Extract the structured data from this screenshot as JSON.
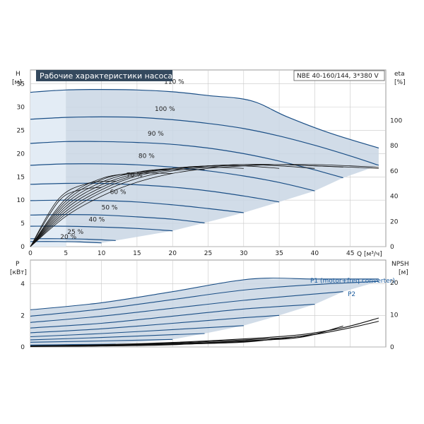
{
  "chart_data": [
    {
      "type": "line",
      "title": "Рабочие характеристики насоса",
      "model": "NBE 40-160/144, 3*380 V",
      "ylabel_left": [
        "H",
        "[м]"
      ],
      "ylabel_right": [
        "eta",
        "[%]"
      ],
      "xlabel": "Q [м³/ч]",
      "xlim": [
        0,
        50
      ],
      "ylim_left": [
        0,
        38
      ],
      "ylim_right": [
        0,
        140
      ],
      "x_ticks": [
        0,
        5,
        10,
        15,
        20,
        25,
        30,
        35,
        40,
        45
      ],
      "y_ticks_left": [
        0,
        5,
        10,
        15,
        20,
        25,
        30,
        35
      ],
      "y_ticks_right": [
        0,
        20,
        40,
        60,
        80,
        100
      ],
      "grid": true,
      "speed_curves": [
        {
          "label": "110 %",
          "points": [
            [
              0,
              33.2
            ],
            [
              5,
              33.7
            ],
            [
              10,
              33.8
            ],
            [
              15,
              33.7
            ],
            [
              20,
              33.3
            ],
            [
              25,
              32.5
            ],
            [
              31,
              31.4
            ],
            [
              36,
              28.0
            ],
            [
              42,
              24.5
            ],
            [
              49,
              21.2
            ]
          ]
        },
        {
          "label": "100 %",
          "points": [
            [
              0,
              27.4
            ],
            [
              5,
              27.8
            ],
            [
              10,
              27.9
            ],
            [
              15,
              27.8
            ],
            [
              20,
              27.3
            ],
            [
              25,
              26.5
            ],
            [
              30,
              25.4
            ],
            [
              35,
              23.8
            ],
            [
              40,
              21.8
            ],
            [
              45,
              19.5
            ],
            [
              49,
              17.5
            ]
          ]
        },
        {
          "label": "90 %",
          "points": [
            [
              0,
              22.2
            ],
            [
              5,
              22.6
            ],
            [
              10,
              22.6
            ],
            [
              15,
              22.4
            ],
            [
              20,
              22.0
            ],
            [
              25,
              21.2
            ],
            [
              30,
              20.0
            ],
            [
              35,
              18.4
            ],
            [
              40,
              16.5
            ],
            [
              44,
              14.8
            ]
          ]
        },
        {
          "label": "80 %",
          "points": [
            [
              0,
              17.5
            ],
            [
              5,
              17.8
            ],
            [
              10,
              17.8
            ],
            [
              15,
              17.6
            ],
            [
              20,
              17.1
            ],
            [
              25,
              16.3
            ],
            [
              30,
              15.2
            ],
            [
              35,
              13.8
            ],
            [
              40,
              12.0
            ]
          ]
        },
        {
          "label": "70 %",
          "points": [
            [
              0,
              13.4
            ],
            [
              5,
              13.6
            ],
            [
              10,
              13.6
            ],
            [
              15,
              13.3
            ],
            [
              20,
              12.8
            ],
            [
              25,
              12.0
            ],
            [
              30,
              10.9
            ],
            [
              35,
              9.6
            ]
          ]
        },
        {
          "label": "60 %",
          "points": [
            [
              0,
              9.9
            ],
            [
              5,
              10.0
            ],
            [
              10,
              9.9
            ],
            [
              15,
              9.6
            ],
            [
              20,
              9.0
            ],
            [
              25,
              8.2
            ],
            [
              30,
              7.3
            ]
          ]
        },
        {
          "label": "50 %",
          "points": [
            [
              0,
              6.8
            ],
            [
              5,
              6.9
            ],
            [
              10,
              6.8
            ],
            [
              15,
              6.4
            ],
            [
              20,
              5.9
            ],
            [
              24.5,
              5.1
            ]
          ]
        },
        {
          "label": "40 %",
          "points": [
            [
              0,
              4.4
            ],
            [
              5,
              4.4
            ],
            [
              10,
              4.2
            ],
            [
              15,
              3.9
            ],
            [
              20,
              3.4
            ]
          ]
        },
        {
          "label": "25 %",
          "points": [
            [
              0,
              1.7
            ],
            [
              4,
              1.7
            ],
            [
              8,
              1.6
            ],
            [
              12,
              1.3
            ]
          ]
        },
        {
          "label": "20 %",
          "points": [
            [
              0,
              1.1
            ],
            [
              4,
              1.1
            ],
            [
              7,
              1.0
            ],
            [
              10,
              0.8
            ]
          ]
        }
      ],
      "efficiency_curves": [
        {
          "label": "110 %",
          "points": [
            [
              0,
              0
            ],
            [
              5,
              24
            ],
            [
              10,
              40
            ],
            [
              15,
              51
            ],
            [
              20,
              58
            ],
            [
              25,
              62
            ],
            [
              30,
              64
            ],
            [
              35,
              65
            ],
            [
              40,
              64
            ],
            [
              45,
              63
            ],
            [
              49,
              62
            ]
          ]
        },
        {
          "label": "100 %",
          "points": [
            [
              0,
              0
            ],
            [
              5,
              26
            ],
            [
              10,
              43
            ],
            [
              15,
              54
            ],
            [
              20,
              60
            ],
            [
              25,
              63
            ],
            [
              30,
              65
            ],
            [
              35,
              65
            ],
            [
              40,
              65
            ],
            [
              45,
              64
            ],
            [
              49,
              63
            ]
          ]
        },
        {
          "label": "90 %",
          "points": [
            [
              0,
              0
            ],
            [
              5,
              28
            ],
            [
              10,
              45
            ],
            [
              15,
              56
            ],
            [
              20,
              61
            ],
            [
              25,
              64
            ],
            [
              30,
              65
            ],
            [
              35,
              65
            ],
            [
              40,
              64
            ],
            [
              44,
              63
            ]
          ]
        },
        {
          "label": "80 %",
          "points": [
            [
              0,
              0
            ],
            [
              5,
              30
            ],
            [
              10,
              47
            ],
            [
              15,
              57
            ],
            [
              20,
              62
            ],
            [
              25,
              64
            ],
            [
              30,
              65
            ],
            [
              35,
              64
            ],
            [
              40,
              62
            ]
          ]
        },
        {
          "label": "70 %",
          "points": [
            [
              0,
              0
            ],
            [
              5,
              32
            ],
            [
              10,
              49
            ],
            [
              15,
              58
            ],
            [
              20,
              62
            ],
            [
              25,
              64
            ],
            [
              30,
              64
            ],
            [
              35,
              62
            ]
          ]
        },
        {
          "label": "60 %",
          "points": [
            [
              0,
              0
            ],
            [
              5,
              34
            ],
            [
              10,
              51
            ],
            [
              15,
              59
            ],
            [
              20,
              62
            ],
            [
              25,
              63
            ],
            [
              30,
              62
            ]
          ]
        },
        {
          "label": "50 %",
          "points": [
            [
              0,
              0
            ],
            [
              5,
              36
            ],
            [
              10,
              53
            ],
            [
              15,
              59
            ],
            [
              20,
              61
            ],
            [
              24.5,
              61
            ]
          ]
        },
        {
          "label": "40 %",
          "points": [
            [
              0,
              0
            ],
            [
              5,
              38
            ],
            [
              10,
              54
            ],
            [
              15,
              58
            ],
            [
              20,
              58
            ]
          ]
        },
        {
          "label": "25 %",
          "points": [
            [
              0,
              0
            ],
            [
              4,
              38
            ],
            [
              8,
              50
            ],
            [
              12,
              52
            ]
          ]
        },
        {
          "label": "20 %",
          "points": [
            [
              0,
              0
            ],
            [
              4,
              36
            ],
            [
              7,
              45
            ],
            [
              10,
              47
            ]
          ]
        }
      ]
    },
    {
      "type": "line",
      "ylabel_left": [
        "P",
        "[кВт]"
      ],
      "ylabel_right": [
        "NPSH",
        "[м]"
      ],
      "xlim": [
        0,
        50
      ],
      "ylim_left": [
        0,
        5.5
      ],
      "ylim_right": [
        0,
        27
      ],
      "y_ticks_left": [
        0,
        2,
        4
      ],
      "y_ticks_right": [
        0,
        10,
        20
      ],
      "grid": true,
      "legend": [
        "P1 (motor+freq.converter)",
        "P2"
      ],
      "power_curves": [
        {
          "label": "110 %",
          "points": [
            [
              0,
              2.35
            ],
            [
              10,
              2.8
            ],
            [
              20,
              3.5
            ],
            [
              31,
              4.3
            ],
            [
              40,
              4.3
            ],
            [
              49,
              4.3
            ]
          ]
        },
        {
          "label": "100 %",
          "points": [
            [
              0,
              1.95
            ],
            [
              10,
              2.4
            ],
            [
              20,
              3.0
            ],
            [
              30,
              3.6
            ],
            [
              40,
              3.95
            ],
            [
              49,
              4.15
            ]
          ]
        },
        {
          "label": "90 %",
          "points": [
            [
              0,
              1.55
            ],
            [
              10,
              1.95
            ],
            [
              20,
              2.45
            ],
            [
              30,
              2.95
            ],
            [
              40,
              3.35
            ],
            [
              44,
              3.5
            ]
          ]
        },
        {
          "label": "80 %",
          "points": [
            [
              0,
              1.2
            ],
            [
              10,
              1.5
            ],
            [
              20,
              1.95
            ],
            [
              30,
              2.4
            ],
            [
              40,
              2.7
            ]
          ]
        },
        {
          "label": "70 %",
          "points": [
            [
              0,
              0.9
            ],
            [
              10,
              1.15
            ],
            [
              20,
              1.5
            ],
            [
              30,
              1.85
            ],
            [
              35,
              2.0
            ]
          ]
        },
        {
          "label": "60 %",
          "points": [
            [
              0,
              0.65
            ],
            [
              10,
              0.85
            ],
            [
              20,
              1.1
            ],
            [
              30,
              1.35
            ]
          ]
        },
        {
          "label": "50 %",
          "points": [
            [
              0,
              0.45
            ],
            [
              10,
              0.6
            ],
            [
              20,
              0.78
            ],
            [
              24.5,
              0.85
            ]
          ]
        },
        {
          "label": "40 %",
          "points": [
            [
              0,
              0.3
            ],
            [
              10,
              0.38
            ],
            [
              20,
              0.48
            ]
          ]
        },
        {
          "label": "25 %",
          "points": [
            [
              0,
              0.12
            ],
            [
              6,
              0.15
            ],
            [
              12,
              0.18
            ]
          ]
        },
        {
          "label": "20 %",
          "points": [
            [
              0,
              0.08
            ],
            [
              5,
              0.1
            ],
            [
              10,
              0.12
            ]
          ]
        }
      ],
      "npsh_curves": [
        {
          "label": "110 %",
          "points": [
            [
              0,
              0.3
            ],
            [
              10,
              0.7
            ],
            [
              20,
              1.4
            ],
            [
              30,
              2.5
            ],
            [
              38,
              3.8
            ],
            [
              44,
              6.0
            ],
            [
              49,
              9.0
            ]
          ]
        },
        {
          "label": "100 %",
          "points": [
            [
              0,
              0.3
            ],
            [
              10,
              0.6
            ],
            [
              20,
              1.2
            ],
            [
              30,
              2.2
            ],
            [
              38,
              3.3
            ],
            [
              44,
              5.5
            ],
            [
              49,
              8.0
            ]
          ]
        },
        {
          "label": "90 %",
          "points": [
            [
              0,
              0.2
            ],
            [
              10,
              0.5
            ],
            [
              20,
              1.0
            ],
            [
              30,
              1.9
            ],
            [
              38,
              3.0
            ],
            [
              44,
              6.5
            ]
          ]
        },
        {
          "label": "80 %",
          "points": [
            [
              0,
              0.2
            ],
            [
              10,
              0.4
            ],
            [
              20,
              0.9
            ],
            [
              30,
              1.7
            ],
            [
              35,
              2.5
            ],
            [
              40,
              4.0
            ]
          ]
        },
        {
          "label": "70 %",
          "points": [
            [
              0,
              0.2
            ],
            [
              10,
              0.35
            ],
            [
              20,
              0.8
            ],
            [
              30,
              1.5
            ],
            [
              35,
              2.7
            ]
          ]
        },
        {
          "label": "60 %",
          "points": [
            [
              0,
              0.15
            ],
            [
              10,
              0.3
            ],
            [
              20,
              0.7
            ],
            [
              30,
              1.8
            ]
          ]
        }
      ]
    }
  ],
  "colors": {
    "curve": "#1b4f86",
    "band_fill": "#c9d6e4",
    "band_light": "#e3ecf5",
    "eta_line": "#111111",
    "grid": "#c8c8c8",
    "title_bg": "#34495e",
    "legend_blue": "#1f5fa0"
  }
}
